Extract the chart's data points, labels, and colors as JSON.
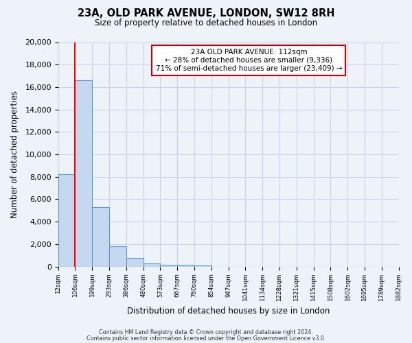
{
  "title": "23A, OLD PARK AVENUE, LONDON, SW12 8RH",
  "subtitle": "Size of property relative to detached houses in London",
  "xlabel": "Distribution of detached houses by size in London",
  "ylabel": "Number of detached properties",
  "bar_color": "#c5d8f0",
  "bar_edge_color": "#5b9bd5",
  "bin_labels": [
    "12sqm",
    "106sqm",
    "199sqm",
    "293sqm",
    "386sqm",
    "480sqm",
    "573sqm",
    "667sqm",
    "760sqm",
    "854sqm",
    "947sqm",
    "1041sqm",
    "1134sqm",
    "1228sqm",
    "1321sqm",
    "1415sqm",
    "1508sqm",
    "1602sqm",
    "1695sqm",
    "1789sqm",
    "1882sqm"
  ],
  "bar_heights": [
    8200,
    16600,
    5300,
    1800,
    750,
    300,
    170,
    130,
    80,
    0,
    0,
    0,
    0,
    0,
    0,
    0,
    0,
    0,
    0,
    0
  ],
  "ylim": [
    0,
    20000
  ],
  "yticks": [
    0,
    2000,
    4000,
    6000,
    8000,
    10000,
    12000,
    14000,
    16000,
    18000,
    20000
  ],
  "red_line_x": 1,
  "annotation_line1": "23A OLD PARK AVENUE: 112sqm",
  "annotation_line2": "← 28% of detached houses are smaller (9,336)",
  "annotation_line3": "71% of semi-detached houses are larger (23,409) →",
  "footer1": "Contains HM Land Registry data © Crown copyright and database right 2024.",
  "footer2": "Contains public sector information licensed under the Open Government Licence v3.0.",
  "background_color": "#eef2f9",
  "grid_color": "#c8d4e8",
  "box_color": "#ffffff",
  "box_edge_color": "#cc0000"
}
